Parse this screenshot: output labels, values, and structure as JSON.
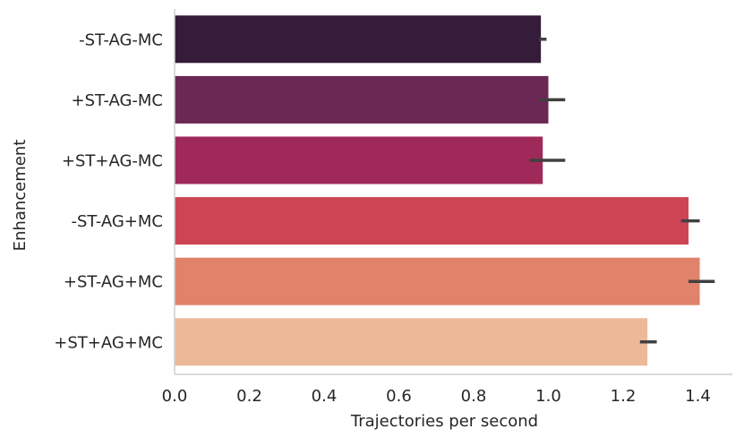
{
  "chart_data": {
    "type": "bar",
    "orientation": "horizontal",
    "title": "",
    "xlabel": "Trajectories per second",
    "ylabel": "Enhancement",
    "categories": [
      "-ST-AG-MC",
      "+ST-AG-MC",
      "+ST+AG-MC",
      "-ST-AG+MC",
      "+ST-AG+MC",
      "+ST+AG+MC"
    ],
    "values": [
      0.98,
      1.0,
      0.985,
      1.375,
      1.405,
      1.265
    ],
    "error_bars": [
      [
        0.975,
        0.995
      ],
      [
        0.975,
        1.045
      ],
      [
        0.95,
        1.045
      ],
      [
        1.355,
        1.405
      ],
      [
        1.375,
        1.445
      ],
      [
        1.245,
        1.29
      ]
    ],
    "colors": [
      "#351c3a",
      "#6b2855",
      "#9f2a59",
      "#cd4555",
      "#e1826a",
      "#ebb898"
    ],
    "error_bar_color": "#404040",
    "xlim": [
      0,
      1.5
    ],
    "xticks": [
      "0.0",
      "0.2",
      "0.4",
      "0.6",
      "0.8",
      "1.0",
      "1.2",
      "1.4"
    ],
    "xtick_values": [
      0,
      0.2,
      0.4,
      0.6,
      0.8,
      1.0,
      1.2,
      1.4
    ],
    "grid": false,
    "legend": "none"
  }
}
